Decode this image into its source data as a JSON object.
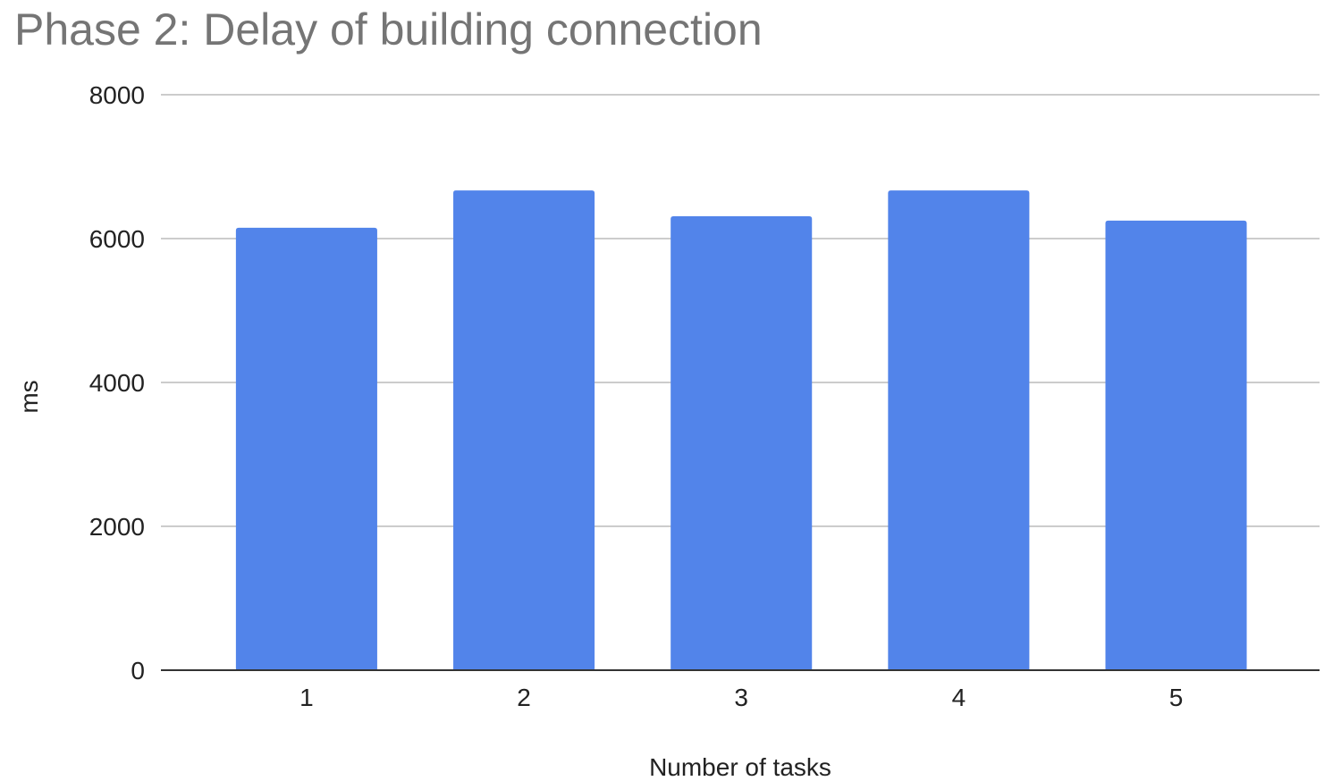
{
  "chart_data": {
    "type": "bar",
    "title": "Phase 2: Delay of building connection",
    "xlabel": "Number of tasks",
    "ylabel": "ms",
    "categories": [
      "1",
      "2",
      "3",
      "4",
      "5"
    ],
    "values": [
      6150,
      6670,
      6310,
      6670,
      6250
    ],
    "ylim": [
      0,
      8000
    ],
    "yticks": [
      0,
      2000,
      4000,
      6000,
      8000
    ],
    "grid": true,
    "legend": "none",
    "bar_color": "#5284EA"
  }
}
